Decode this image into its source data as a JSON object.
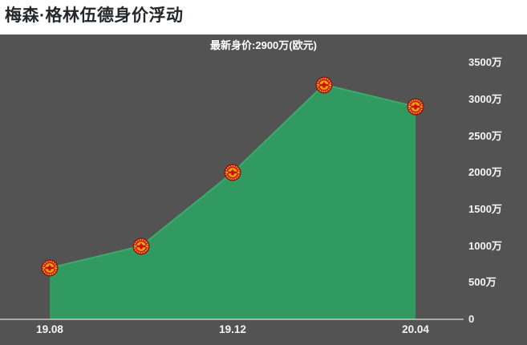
{
  "page": {
    "title": "梅森·格林伍德身价浮动"
  },
  "chart": {
    "subtitle": "最新身价:2900万(欧元)",
    "marker_icon": "manchester-united-crest-icon",
    "colors": {
      "background": "#535353",
      "area_fill": "#319a60",
      "area_line": "#3bab6c",
      "axis_line": "#dcdcdc",
      "tick_label": "#f5f5f5",
      "title_text": "#24282c",
      "subtitle_text": "#ffffff"
    }
  },
  "chart_data": {
    "type": "area",
    "title": "梅森·格林伍德身价浮动",
    "subtitle": "最新身价:2900万(欧元)",
    "categories": [
      "19.08",
      "",
      "19.12",
      "",
      "20.04"
    ],
    "values": [
      700,
      1000,
      2000,
      3200,
      2900
    ],
    "unit": "万(欧元)",
    "yticks": [
      {
        "label": "0",
        "value": 0
      },
      {
        "label": "500万",
        "value": 500
      },
      {
        "label": "1000万",
        "value": 1000
      },
      {
        "label": "1500万",
        "value": 1500
      },
      {
        "label": "2000万",
        "value": 2000
      },
      {
        "label": "2500万",
        "value": 2500
      },
      {
        "label": "3000万",
        "value": 3000
      },
      {
        "label": "3500万",
        "value": 3500
      }
    ],
    "ylim": [
      0,
      3500
    ],
    "y_axis_position": "right",
    "grid": false,
    "legend": "none",
    "marker": "manchester-united-crest"
  }
}
